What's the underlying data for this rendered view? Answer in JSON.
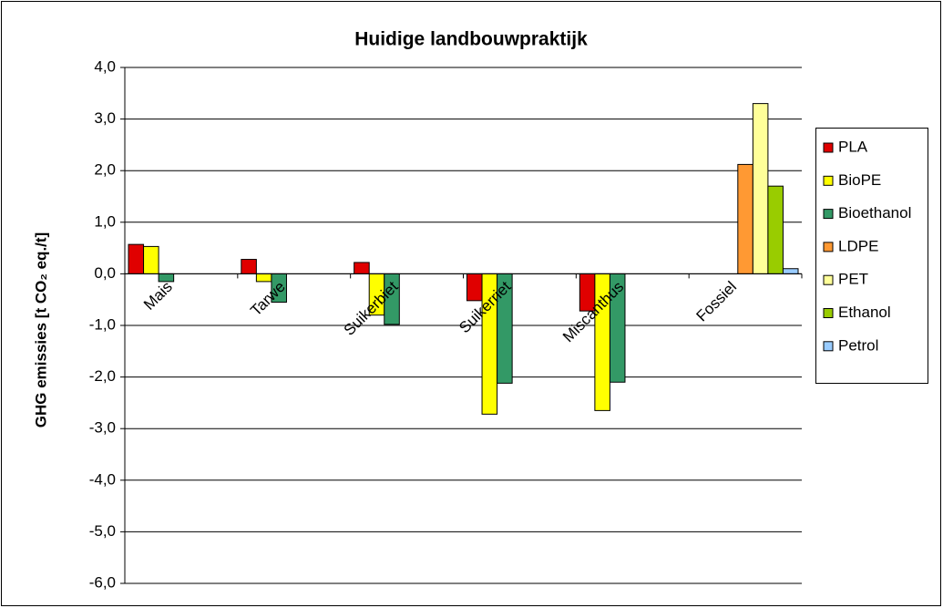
{
  "chart_data": {
    "type": "bar",
    "title": "Huidige landbouwpraktijk",
    "y_label": "GHG emissies [t CO₂ eq./t]",
    "categories": [
      "Mais",
      "Tarwe",
      "Suikerbiet",
      "Suikerriet",
      "Miscanthus",
      "Fossiel"
    ],
    "series": [
      {
        "name": "PLA",
        "color": "#e00000",
        "values": [
          0.57,
          0.28,
          0.22,
          -0.52,
          -0.72,
          null
        ]
      },
      {
        "name": "BioPE",
        "color": "#ffff00",
        "values": [
          0.53,
          -0.15,
          -0.8,
          -2.72,
          -2.65,
          null
        ]
      },
      {
        "name": "Bioethanol",
        "color": "#339966",
        "values": [
          -0.15,
          -0.55,
          -0.98,
          -2.12,
          -2.1,
          null
        ]
      },
      {
        "name": "LDPE",
        "color": "#ff9933",
        "values": [
          null,
          null,
          null,
          null,
          null,
          2.12
        ]
      },
      {
        "name": "PET",
        "color": "#ffff99",
        "values": [
          null,
          null,
          null,
          null,
          null,
          3.3
        ]
      },
      {
        "name": "Ethanol",
        "color": "#99cc00",
        "values": [
          null,
          null,
          null,
          null,
          null,
          1.7
        ]
      },
      {
        "name": "Petrol",
        "color": "#99ccff",
        "values": [
          null,
          null,
          null,
          null,
          null,
          0.1
        ]
      }
    ],
    "ylim": [
      -6,
      4
    ],
    "yticks": [
      {
        "value": -6,
        "label": "-6,0"
      },
      {
        "value": -5,
        "label": "-5,0"
      },
      {
        "value": -4,
        "label": "-4,0"
      },
      {
        "value": -3,
        "label": "-3,0"
      },
      {
        "value": -2,
        "label": "-2,0"
      },
      {
        "value": -1,
        "label": "-1,0"
      },
      {
        "value": 0,
        "label": "0,0"
      },
      {
        "value": 1,
        "label": "1,0"
      },
      {
        "value": 2,
        "label": "2,0"
      },
      {
        "value": 3,
        "label": "3,0"
      },
      {
        "value": 4,
        "label": "4,0"
      }
    ],
    "grid": true,
    "legend": "right"
  }
}
